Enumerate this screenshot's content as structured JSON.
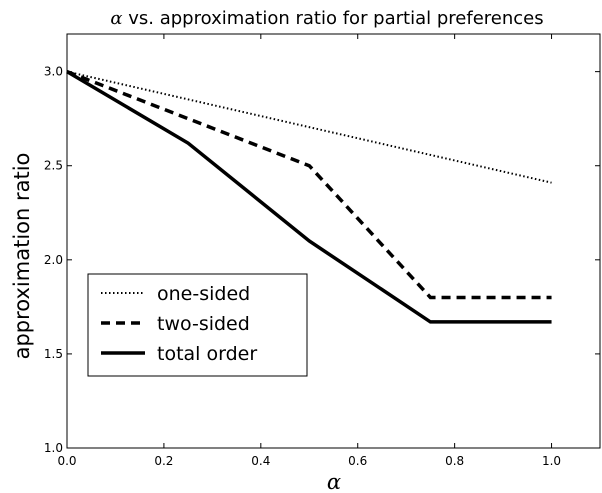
{
  "chart_data": {
    "type": "line",
    "title_symbol": "α",
    "title_rest": " vs. approximation ratio for partial preferences",
    "xlabel": "α",
    "ylabel": "approximation ratio",
    "xlim": [
      0.0,
      1.1
    ],
    "ylim": [
      1.0,
      3.2
    ],
    "xticks": [
      "0.0",
      "0.2",
      "0.4",
      "0.6",
      "0.8",
      "1.0"
    ],
    "yticks": [
      "1.0",
      "1.5",
      "2.0",
      "2.5",
      "3.0"
    ],
    "grid": false,
    "legend_position": "lower-left",
    "series": [
      {
        "name": "one-sided",
        "style": "dotted",
        "x": [
          0.0,
          1.0
        ],
        "y": [
          3.0,
          2.41
        ]
      },
      {
        "name": "two-sided",
        "style": "dashed",
        "x": [
          0.0,
          0.5,
          0.75,
          1.0
        ],
        "y": [
          3.0,
          2.5,
          1.8,
          1.8
        ]
      },
      {
        "name": "total order",
        "style": "solid",
        "x": [
          0.0,
          0.25,
          0.5,
          0.75,
          1.0
        ],
        "y": [
          3.0,
          2.62,
          2.1,
          1.67,
          1.67
        ]
      }
    ]
  }
}
